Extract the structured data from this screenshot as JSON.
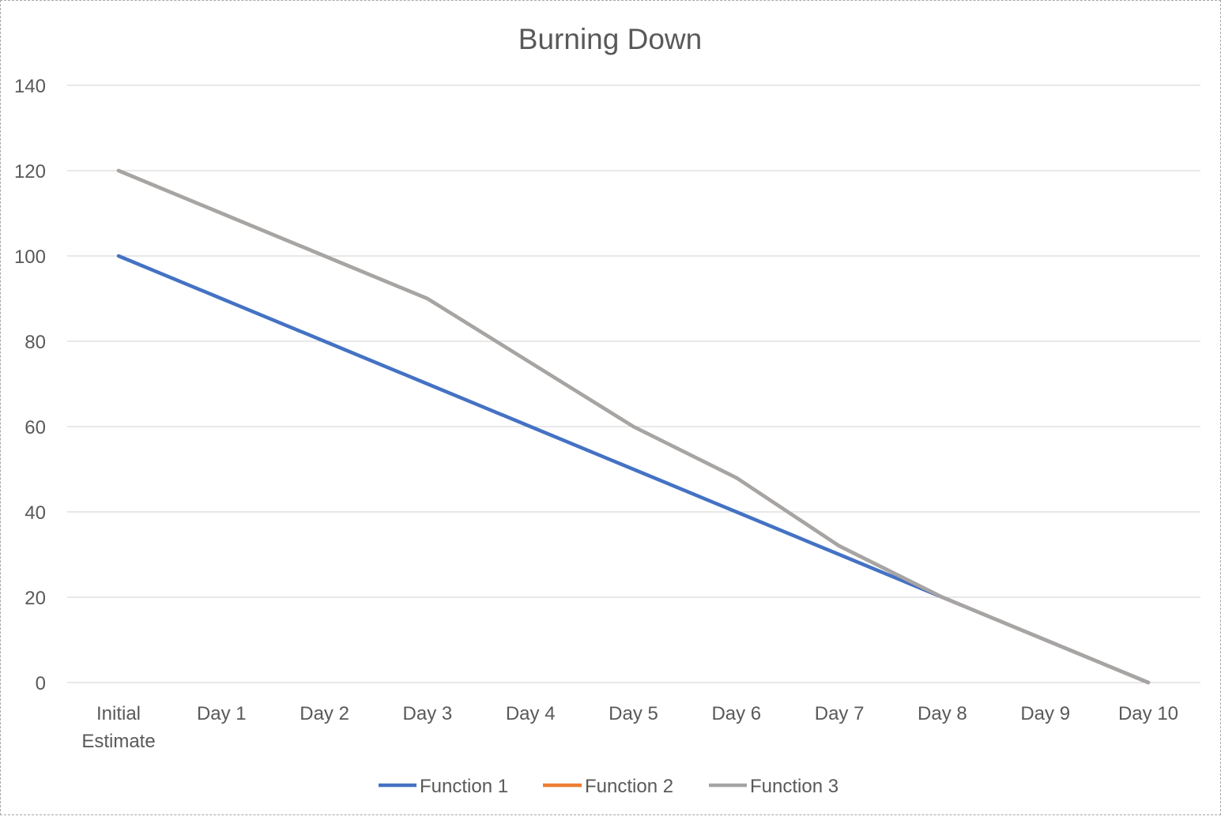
{
  "chart_data": {
    "type": "line",
    "title": "Burning Down",
    "xlabel": "",
    "ylabel": "",
    "categories": [
      "Initial Estimate",
      "Day 1",
      "Day 2",
      "Day 3",
      "Day 4",
      "Day 5",
      "Day 6",
      "Day 7",
      "Day 8",
      "Day 9",
      "Day 10"
    ],
    "ylim": [
      0,
      140
    ],
    "yticks": [
      0,
      20,
      40,
      60,
      80,
      100,
      120,
      140
    ],
    "grid": true,
    "legend_position": "bottom",
    "series": [
      {
        "name": "Function 1",
        "color": "#4472c4",
        "values": [
          100,
          90,
          80,
          70,
          60,
          50,
          40,
          30,
          20,
          10,
          0
        ]
      },
      {
        "name": "Function 2",
        "color": "#ed7d31",
        "values": [
          120,
          110,
          100,
          90,
          75,
          60,
          48,
          32,
          20,
          10,
          0
        ]
      },
      {
        "name": "Function 3",
        "color": "#a5a5a5",
        "values": [
          120,
          110,
          100,
          90,
          75,
          60,
          48,
          32,
          20,
          10,
          0
        ]
      }
    ]
  }
}
